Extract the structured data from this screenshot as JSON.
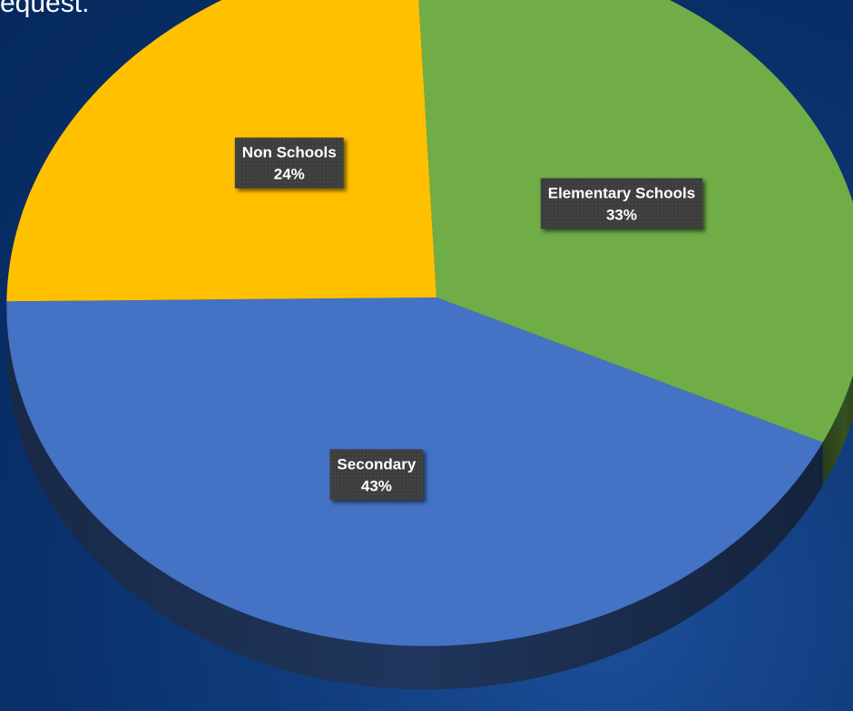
{
  "caption": "equest.",
  "chart_data": {
    "type": "pie",
    "style": "3d",
    "title": "",
    "start_angle_deg": 0,
    "direction": "clockwise",
    "slices": [
      {
        "label": "Elementary Schools",
        "value": 33,
        "display": "33%",
        "color": "#70ad47"
      },
      {
        "label": "Secondary",
        "value": 43,
        "display": "43%",
        "color": "#4472c4"
      },
      {
        "label": "Non Schools",
        "value": 24,
        "display": "24%",
        "color": "#ffc000"
      }
    ],
    "legend": "none"
  }
}
